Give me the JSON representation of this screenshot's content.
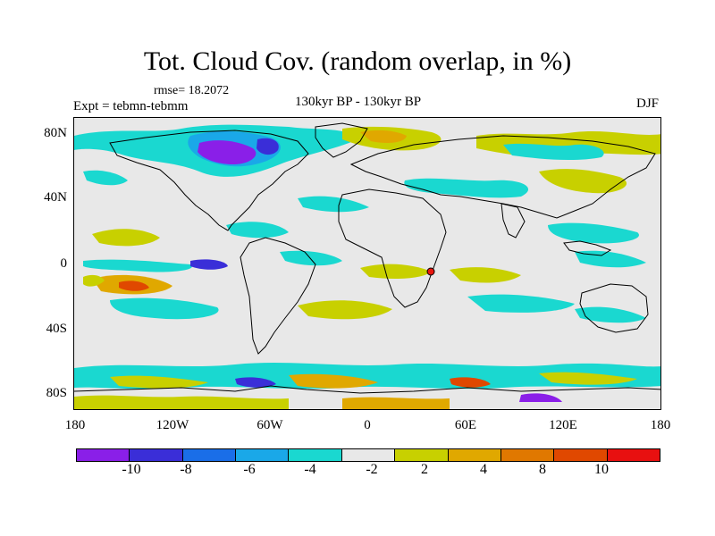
{
  "title": "Tot. Cloud Cov. (random overlap, in %)",
  "rmse": "rmse= 18.2072",
  "experiment": "Expt = tebmn-tebmm",
  "periods": "130kyr BP - 130kyr BP",
  "season": "DJF",
  "map": {
    "projection": "cylindrical equidistant",
    "lat_labels": [
      "80N",
      "40N",
      "0",
      "40S",
      "80S"
    ],
    "lon_labels": [
      "180",
      "120W",
      "60W",
      "0",
      "60E",
      "120E",
      "180"
    ],
    "background_color": "#e8e8e8",
    "marker_color": "#e8170f"
  },
  "colorbar": {
    "colors": [
      "#8a1fe8",
      "#3a2ed8",
      "#1a6ee8",
      "#1aa8e8",
      "#1ad8d0",
      "#e8e8e8",
      "#c8d000",
      "#e0a800",
      "#e07800",
      "#e04800",
      "#e81010"
    ],
    "labels": [
      "-10",
      "-8",
      "-6",
      "-4",
      "-2",
      "2",
      "4",
      "8",
      "10"
    ]
  }
}
